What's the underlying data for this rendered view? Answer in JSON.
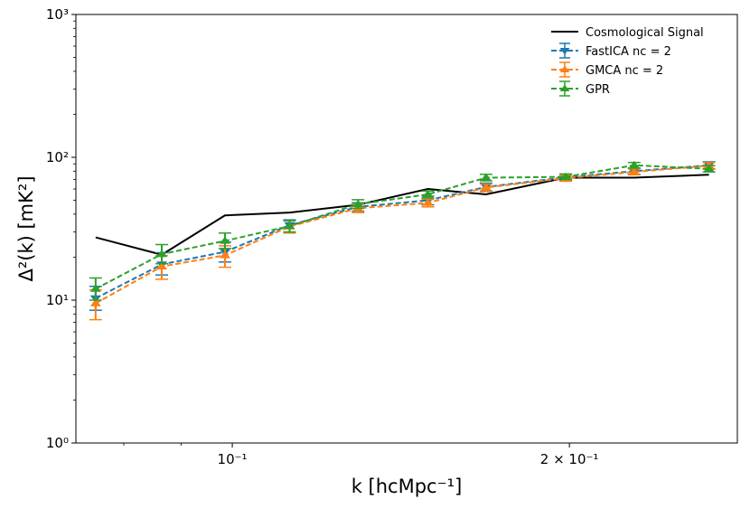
{
  "chart_data": {
    "type": "line",
    "title": "",
    "xlabel": "k [hcMpc⁻¹]",
    "ylabel": "Δ²(k) [mK²]",
    "xscale": "log",
    "yscale": "log",
    "xlim": [
      0.0725,
      0.2825
    ],
    "ylim": [
      1,
      1000
    ],
    "legend_position": "top-right",
    "x_ticks": [
      {
        "value": 0.1,
        "label": "10⁻¹"
      },
      {
        "value": 0.2,
        "label": "2 × 10⁻¹"
      }
    ],
    "y_ticks": [
      {
        "value": 1,
        "label": "10⁰"
      },
      {
        "value": 10,
        "label": "10¹"
      },
      {
        "value": 100,
        "label": "10²"
      },
      {
        "value": 1000,
        "label": "10³"
      }
    ],
    "x": [
      0.0755,
      0.0865,
      0.0985,
      0.1125,
      0.1295,
      0.1495,
      0.1685,
      0.1985,
      0.2285,
      0.2665
    ],
    "series": [
      {
        "name": "Cosmological Signal",
        "color": "#000000",
        "style": "solid",
        "marker": "none",
        "values": [
          27.5,
          20.8,
          39.2,
          41.0,
          46.5,
          60.0,
          55.0,
          72.0,
          72.0,
          75.5
        ]
      },
      {
        "name": "FastICA nc = 2",
        "color": "#1f77b4",
        "style": "dashed",
        "marker": "triangle-down",
        "values": [
          10.3,
          17.8,
          21.8,
          33.5,
          45.0,
          50.0,
          62.0,
          72.5,
          80.0,
          88.0
        ],
        "err_low": [
          8.5,
          15.0,
          18.5,
          30.0,
          42.0,
          46.5,
          58.0,
          69.0,
          76.0,
          83.0
        ],
        "err_high": [
          12.5,
          21.5,
          25.5,
          36.5,
          48.0,
          53.5,
          66.0,
          76.0,
          84.0,
          93.0
        ]
      },
      {
        "name": "GMCA nc = 2",
        "color": "#ff7f0e",
        "style": "dashed",
        "marker": "triangle-up",
        "values": [
          9.5,
          17.2,
          20.6,
          32.8,
          44.0,
          48.0,
          61.5,
          71.5,
          79.0,
          87.5
        ],
        "err_low": [
          7.3,
          14.0,
          17.0,
          29.5,
          41.0,
          45.0,
          57.5,
          68.0,
          75.5,
          82.5
        ],
        "err_high": [
          11.8,
          20.5,
          24.0,
          36.0,
          47.0,
          51.0,
          65.0,
          75.0,
          83.0,
          92.0
        ]
      },
      {
        "name": "GPR",
        "color": "#2ca02c",
        "style": "dashed",
        "marker": "triangle-up",
        "values": [
          12.0,
          21.0,
          26.0,
          33.0,
          47.0,
          55.0,
          72.0,
          73.0,
          88.0,
          83.0
        ],
        "err_low": [
          10.0,
          18.0,
          23.0,
          30.0,
          44.0,
          52.0,
          68.5,
          70.0,
          84.0,
          79.0
        ],
        "err_high": [
          14.3,
          24.5,
          29.5,
          36.0,
          50.5,
          58.0,
          76.0,
          76.5,
          92.0,
          87.5
        ]
      }
    ]
  }
}
